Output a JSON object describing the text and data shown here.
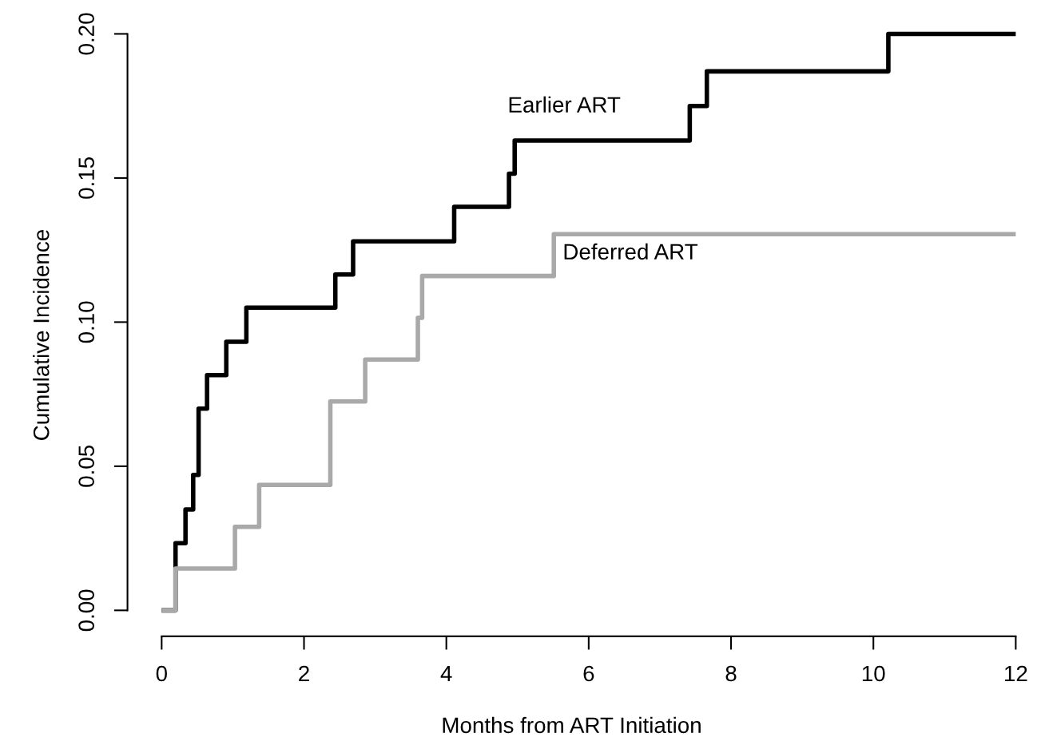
{
  "chart_data": {
    "type": "step",
    "xlabel": "Months from ART Initiation",
    "ylabel": "Cumulative Incidence",
    "series": [
      {
        "color": "#000000",
        "x": [
          0,
          0.195,
          0.335,
          0.443,
          0.519,
          0.638,
          0.908,
          1.19,
          2.44,
          2.69,
          4.11,
          4.88,
          4.96,
          7.42,
          7.66,
          10.21,
          12
        ],
        "values": [
          0,
          0.0233,
          0.035,
          0.047,
          0.07,
          0.0816,
          0.0932,
          0.105,
          0.1165,
          0.128,
          0.14,
          0.1515,
          0.163,
          0.175,
          0.187,
          0.2,
          0.2
        ]
      },
      {
        "color": "#a9a9a9",
        "x": [
          0,
          0.195,
          1.03,
          1.37,
          2.37,
          2.86,
          3.6,
          3.66,
          5.51,
          12
        ],
        "values": [
          0,
          0.0145,
          0.029,
          0.0435,
          0.0725,
          0.087,
          0.1015,
          0.116,
          0.1305,
          0.1305
        ]
      }
    ],
    "annotations": [
      "Earlier ART",
      "Deferred ART"
    ],
    "xlim": [
      -0.48,
      12
    ],
    "ylim": [
      -0.009,
      0.2
    ],
    "xticks": [
      0,
      2,
      4,
      6,
      8,
      10,
      12
    ],
    "yticks": [
      {
        "value": 0,
        "label": "0.00"
      },
      {
        "value": 0.05,
        "label": "0.05"
      },
      {
        "value": 0.1,
        "label": "0.10"
      },
      {
        "value": 0.15,
        "label": "0.15"
      },
      {
        "value": 0.2,
        "label": "0.20"
      }
    ],
    "grid": false,
    "legend": false
  }
}
